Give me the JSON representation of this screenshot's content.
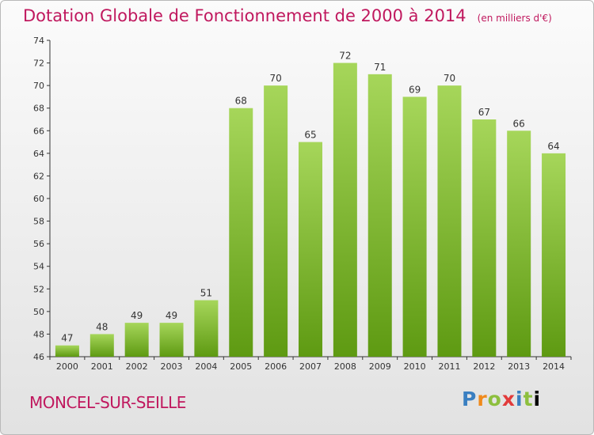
{
  "title": "Dotation Globale de Fonctionnement de 2000 à 2014",
  "unit_note": "(en milliers d'€)",
  "place": "MONCEL-SUR-SEILLE",
  "brand": "Proxiti",
  "colors": {
    "title": "#c0185e",
    "bar_light": "#a6d65a",
    "bar_dark": "#5e9a12",
    "axis": "#333333"
  },
  "chart_data": {
    "type": "bar",
    "categories": [
      "2000",
      "2001",
      "2002",
      "2003",
      "2004",
      "2005",
      "2006",
      "2007",
      "2008",
      "2009",
      "2010",
      "2011",
      "2012",
      "2013",
      "2014"
    ],
    "values": [
      47,
      48,
      49,
      49,
      51,
      68,
      70,
      65,
      72,
      71,
      69,
      70,
      67,
      66,
      64
    ],
    "ylim": [
      46,
      74
    ],
    "yticks": [
      46,
      48,
      50,
      52,
      54,
      56,
      58,
      60,
      62,
      64,
      66,
      68,
      70,
      72,
      74
    ],
    "grid": false
  }
}
